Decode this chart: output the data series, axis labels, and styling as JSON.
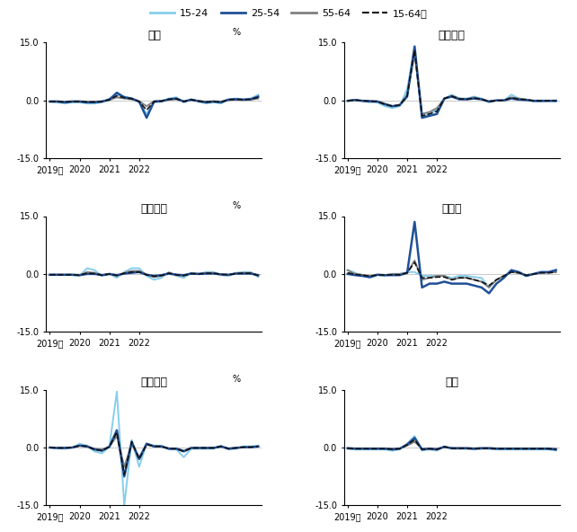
{
  "titles": [
    "日本",
    "アメリカ",
    "イギリス",
    "ドイツ",
    "フランス",
    "韓国"
  ],
  "colors": {
    "15-24": "#87CEEB",
    "25-54": "#1F5099",
    "55-64": "#808080",
    "15-64": "#111111"
  },
  "ylim": [
    -15.0,
    15.0
  ],
  "series": {
    "日本": {
      "15-24": [
        -0.3,
        -0.5,
        -0.8,
        -0.5,
        -0.5,
        -0.8,
        -0.8,
        -0.5,
        0.5,
        1.5,
        1.0,
        0.5,
        -0.5,
        -3.5,
        -0.5,
        -0.3,
        0.5,
        0.8,
        -0.5,
        0.3,
        -0.3,
        -0.8,
        -0.5,
        -0.8,
        0.3,
        0.5,
        0.3,
        0.5,
        1.5
      ],
      "25-54": [
        -0.3,
        -0.3,
        -0.5,
        -0.3,
        -0.3,
        -0.5,
        -0.5,
        -0.3,
        0.2,
        2.0,
        0.8,
        0.5,
        -0.3,
        -4.5,
        -0.3,
        -0.2,
        0.3,
        0.5,
        -0.3,
        0.2,
        -0.2,
        -0.5,
        -0.3,
        -0.5,
        0.2,
        0.3,
        0.2,
        0.3,
        1.0
      ],
      "55-64": [
        -0.2,
        -0.2,
        -0.3,
        -0.2,
        -0.2,
        -0.3,
        -0.3,
        -0.2,
        0.1,
        0.8,
        0.5,
        0.3,
        -0.2,
        -1.5,
        -0.2,
        -0.1,
        0.2,
        0.3,
        -0.2,
        0.1,
        -0.1,
        -0.3,
        -0.2,
        -0.3,
        0.1,
        0.2,
        0.1,
        0.2,
        0.5
      ],
      "15-64": [
        -0.3,
        -0.3,
        -0.4,
        -0.3,
        -0.3,
        -0.4,
        -0.4,
        -0.3,
        0.2,
        1.2,
        0.7,
        0.4,
        -0.3,
        -2.5,
        -0.3,
        -0.2,
        0.3,
        0.4,
        -0.3,
        0.2,
        -0.2,
        -0.4,
        -0.3,
        -0.4,
        0.2,
        0.3,
        0.2,
        0.3,
        0.8
      ]
    },
    "アメリカ": {
      "15-24": [
        -0.2,
        0.2,
        -0.2,
        -0.5,
        -0.5,
        -1.5,
        -2.0,
        -1.5,
        3.0,
        13.5,
        -4.0,
        -3.5,
        -2.5,
        0.5,
        1.5,
        0.5,
        0.5,
        1.0,
        0.5,
        -0.5,
        0.0,
        0.0,
        1.5,
        0.5,
        0.3,
        -0.3,
        -0.3,
        -0.2,
        -0.3
      ],
      "25-54": [
        -0.1,
        0.1,
        -0.1,
        -0.2,
        -0.3,
        -1.0,
        -1.5,
        -1.2,
        1.0,
        14.0,
        -4.5,
        -4.0,
        -3.5,
        0.5,
        1.0,
        0.3,
        0.3,
        0.5,
        0.3,
        -0.3,
        0.0,
        0.0,
        0.5,
        0.2,
        0.1,
        -0.1,
        -0.1,
        -0.1,
        -0.1
      ],
      "55-64": [
        -0.1,
        0.1,
        -0.1,
        -0.2,
        -0.2,
        -0.8,
        -1.5,
        -1.2,
        1.5,
        12.0,
        -3.5,
        -3.0,
        -2.0,
        0.5,
        1.2,
        0.5,
        0.3,
        0.8,
        0.3,
        -0.2,
        0.0,
        0.0,
        0.8,
        0.5,
        0.2,
        -0.1,
        -0.1,
        -0.1,
        0.0
      ],
      "15-64": [
        -0.1,
        0.1,
        -0.1,
        -0.2,
        -0.3,
        -1.0,
        -1.5,
        -1.2,
        1.2,
        13.0,
        -4.0,
        -3.5,
        -2.8,
        0.5,
        1.1,
        0.4,
        0.3,
        0.6,
        0.3,
        -0.3,
        0.0,
        0.0,
        0.7,
        0.3,
        0.2,
        -0.1,
        -0.1,
        -0.1,
        -0.1
      ]
    },
    "イギリス": {
      "15-24": [
        -0.3,
        -0.3,
        -0.3,
        -0.3,
        -0.5,
        1.5,
        1.0,
        -0.5,
        0.0,
        -1.0,
        0.5,
        1.5,
        1.5,
        -0.5,
        -1.5,
        -1.0,
        0.5,
        -0.5,
        -1.0,
        0.3,
        0.0,
        0.5,
        0.5,
        -0.3,
        -0.5,
        0.3,
        0.5,
        0.5,
        -0.8
      ],
      "25-54": [
        -0.2,
        -0.2,
        -0.2,
        -0.2,
        -0.3,
        0.0,
        0.0,
        -0.3,
        0.0,
        -0.3,
        0.1,
        0.3,
        0.5,
        -0.2,
        -0.5,
        -0.3,
        0.1,
        -0.2,
        -0.3,
        0.1,
        0.0,
        0.1,
        0.1,
        -0.1,
        -0.2,
        0.1,
        0.1,
        0.1,
        -0.3
      ],
      "55-64": [
        -0.2,
        -0.2,
        -0.2,
        -0.2,
        -0.3,
        0.5,
        0.3,
        -0.3,
        0.0,
        -0.5,
        0.3,
        0.8,
        0.8,
        -0.2,
        -0.8,
        -0.5,
        0.3,
        -0.3,
        -0.5,
        0.2,
        0.0,
        0.3,
        0.3,
        -0.2,
        -0.3,
        0.2,
        0.3,
        0.3,
        -0.5
      ],
      "15-64": [
        -0.2,
        -0.2,
        -0.2,
        -0.2,
        -0.3,
        0.2,
        0.1,
        -0.3,
        0.0,
        -0.4,
        0.2,
        0.5,
        0.5,
        -0.2,
        -0.6,
        -0.4,
        0.2,
        -0.2,
        -0.4,
        0.1,
        0.0,
        0.2,
        0.2,
        -0.1,
        -0.2,
        0.1,
        0.2,
        0.2,
        -0.4
      ]
    },
    "ドイツ": {
      "15-24": [
        1.0,
        0.3,
        -0.5,
        -1.0,
        -0.3,
        -0.5,
        0.0,
        0.0,
        0.5,
        0.5,
        -0.5,
        -0.5,
        -0.5,
        -0.5,
        -1.0,
        -0.5,
        -0.5,
        -0.8,
        -1.0,
        -3.5,
        -1.5,
        -0.5,
        0.5,
        0.3,
        -0.5,
        0.0,
        0.3,
        0.5,
        1.0
      ],
      "25-54": [
        0.0,
        -0.3,
        -0.5,
        -0.8,
        -0.2,
        -0.3,
        -0.3,
        -0.3,
        0.3,
        13.5,
        -3.5,
        -2.5,
        -2.5,
        -2.0,
        -2.5,
        -2.5,
        -2.5,
        -3.0,
        -3.5,
        -5.0,
        -2.5,
        -1.0,
        1.0,
        0.5,
        -0.5,
        0.0,
        0.5,
        0.5,
        1.0
      ],
      "55-64": [
        1.0,
        0.0,
        -0.2,
        -0.5,
        -0.2,
        -0.3,
        0.0,
        0.0,
        0.3,
        3.5,
        -1.5,
        -1.0,
        -0.5,
        -0.5,
        -1.5,
        -1.0,
        -1.0,
        -1.5,
        -2.0,
        -3.5,
        -1.5,
        -0.5,
        0.5,
        0.3,
        -0.3,
        0.0,
        0.3,
        0.3,
        0.5
      ],
      "15-64": [
        0.3,
        -0.1,
        -0.3,
        -0.6,
        -0.2,
        -0.3,
        -0.2,
        -0.2,
        0.3,
        3.0,
        -1.0,
        -1.0,
        -0.8,
        -0.8,
        -1.5,
        -1.0,
        -1.0,
        -1.5,
        -2.0,
        -3.0,
        -1.5,
        -0.5,
        0.5,
        0.3,
        -0.3,
        0.0,
        0.3,
        0.3,
        0.5
      ]
    },
    "フランス": {
      "15-24": [
        0.0,
        -0.2,
        -0.3,
        0.0,
        1.0,
        0.5,
        -1.0,
        -1.5,
        0.3,
        14.5,
        -15.0,
        2.0,
        -5.0,
        1.0,
        0.5,
        0.5,
        -0.5,
        -0.5,
        -2.5,
        -0.3,
        -0.3,
        -0.3,
        -0.3,
        0.5,
        -0.5,
        -0.3,
        0.3,
        0.3,
        0.5
      ],
      "25-54": [
        0.0,
        -0.1,
        -0.1,
        0.0,
        0.5,
        0.3,
        -0.5,
        -0.8,
        0.2,
        4.5,
        -7.5,
        1.5,
        -3.0,
        1.0,
        0.3,
        0.3,
        -0.3,
        -0.3,
        -1.0,
        -0.1,
        -0.1,
        -0.1,
        -0.1,
        0.3,
        -0.3,
        -0.1,
        0.1,
        0.1,
        0.3
      ],
      "55-64": [
        0.0,
        -0.1,
        -0.1,
        0.0,
        0.5,
        0.3,
        -0.3,
        -0.5,
        0.2,
        3.0,
        -5.0,
        1.0,
        -2.5,
        0.8,
        0.3,
        0.2,
        -0.2,
        -0.2,
        -0.8,
        -0.1,
        -0.1,
        -0.1,
        -0.1,
        0.2,
        -0.2,
        -0.1,
        0.1,
        0.1,
        0.2
      ],
      "15-64": [
        0.0,
        -0.1,
        -0.1,
        0.0,
        0.5,
        0.3,
        -0.5,
        -0.8,
        0.2,
        4.0,
        -7.0,
        1.5,
        -3.0,
        0.8,
        0.3,
        0.3,
        -0.3,
        -0.3,
        -1.0,
        -0.1,
        -0.1,
        -0.1,
        -0.1,
        0.3,
        -0.3,
        -0.1,
        0.1,
        0.1,
        0.3
      ]
    },
    "韓国": {
      "15-24": [
        -0.3,
        -0.5,
        -0.5,
        -0.5,
        -0.5,
        -0.5,
        -0.8,
        -0.5,
        1.0,
        3.0,
        -0.8,
        -0.5,
        -0.8,
        0.3,
        -0.3,
        -0.3,
        -0.3,
        -0.5,
        -0.3,
        -0.3,
        -0.5,
        -0.5,
        -0.5,
        -0.5,
        -0.5,
        -0.5,
        -0.5,
        -0.5,
        -0.8
      ],
      "25-54": [
        -0.2,
        -0.3,
        -0.3,
        -0.3,
        -0.3,
        -0.3,
        -0.5,
        -0.3,
        0.8,
        2.5,
        -0.5,
        -0.3,
        -0.5,
        0.2,
        -0.2,
        -0.2,
        -0.2,
        -0.3,
        -0.2,
        -0.2,
        -0.3,
        -0.3,
        -0.3,
        -0.3,
        -0.3,
        -0.3,
        -0.3,
        -0.3,
        -0.5
      ],
      "55-64": [
        -0.1,
        -0.2,
        -0.2,
        -0.2,
        -0.2,
        -0.2,
        -0.3,
        -0.2,
        0.5,
        1.5,
        -0.3,
        -0.2,
        -0.3,
        0.1,
        -0.1,
        -0.1,
        -0.1,
        -0.2,
        -0.1,
        -0.1,
        -0.2,
        -0.2,
        -0.2,
        -0.2,
        -0.2,
        -0.2,
        -0.2,
        -0.2,
        -0.3
      ],
      "15-64": [
        -0.2,
        -0.3,
        -0.3,
        -0.3,
        -0.3,
        -0.3,
        -0.4,
        -0.3,
        0.7,
        2.0,
        -0.5,
        -0.3,
        -0.5,
        0.2,
        -0.2,
        -0.2,
        -0.2,
        -0.3,
        -0.2,
        -0.2,
        -0.3,
        -0.3,
        -0.3,
        -0.3,
        -0.3,
        -0.3,
        -0.3,
        -0.3,
        -0.5
      ]
    }
  }
}
